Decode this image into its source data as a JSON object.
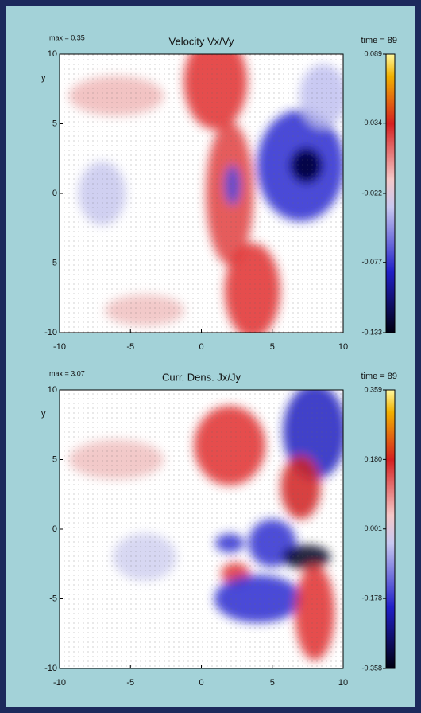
{
  "chart_data": [
    {
      "type": "field",
      "title": "Velocity Vx/Vy",
      "scale_label": "max = 0.35",
      "time_label": "time = 89",
      "ylabel": "y",
      "xlim": [
        -10,
        10
      ],
      "ylim": [
        -10,
        10
      ],
      "xticks": [
        -10,
        -5,
        0,
        5,
        10
      ],
      "yticks": [
        -10,
        -5,
        0,
        5,
        10
      ],
      "clim": [
        -0.133,
        0.089
      ],
      "cticks": [
        0.089,
        0.034,
        -0.022,
        -0.077,
        -0.133
      ]
    },
    {
      "type": "field",
      "title": "Curr. Dens. Jx/Jy",
      "scale_label": "max = 3.07",
      "time_label": "time = 89",
      "ylabel": "y",
      "xlim": [
        -10,
        10
      ],
      "ylim": [
        -10,
        10
      ],
      "xticks": [
        -10,
        -5,
        0,
        5,
        10
      ],
      "yticks": [
        -10,
        -5,
        0,
        5,
        10
      ],
      "clim": [
        -0.358,
        0.359
      ],
      "cticks": [
        0.359,
        {
          "value": 0.18,
          "label": "0.180"
        },
        0.001,
        -0.178,
        -0.358
      ]
    }
  ]
}
